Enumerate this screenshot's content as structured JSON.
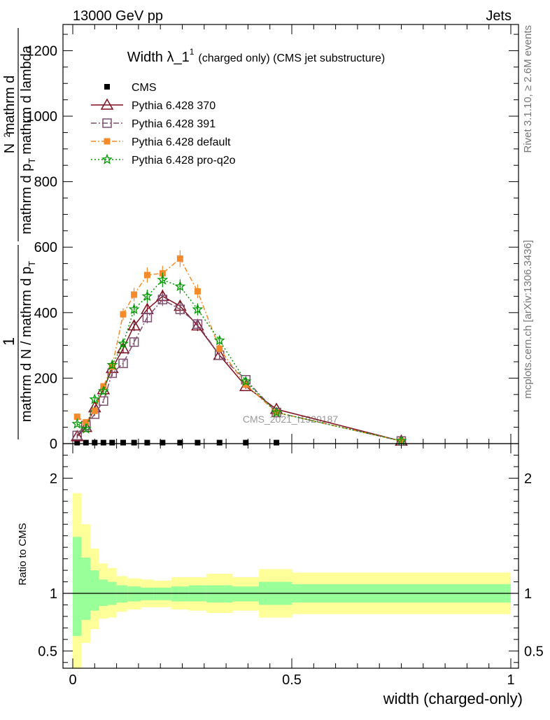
{
  "header": {
    "left": "13000 GeV pp",
    "right": "Jets"
  },
  "side_labels": {
    "rivet": "Rivet 3.1.10, ≥ 2.6M events",
    "mcplots": "mcplots.cern.ch [arXiv:1306.3436]"
  },
  "watermark": "CMS_2021_I1920187",
  "chart_data": [
    {
      "type": "line",
      "title_main": "Width λ_1",
      "title_sup": "1",
      "title_rest": "(charged only) (CMS jet substructure)",
      "ylabel_numer": "1",
      "ylabel_denom_a": "mathrm d N / mathrm d p",
      "ylabel_denom_a_sub": "T",
      "ylabel_denom_b": "mathrm d p",
      "ylabel_denom_b_sub": "T",
      "ylabel_denom_c": "mathrm d lambda",
      "ylabel_numer2": "mathrm d",
      "ylabel_numer2_sup": "2",
      "ylabel_numer3": "N",
      "xlabel": "width (charged-only)",
      "xlim": [
        -0.02,
        1.02
      ],
      "ylim": [
        0,
        1280
      ],
      "yticks": [
        {
          "v": 0,
          "label": "0"
        },
        {
          "v": 200,
          "label": "200"
        },
        {
          "v": 400,
          "label": "400"
        },
        {
          "v": 600,
          "label": "600"
        },
        {
          "v": 800,
          "label": "800"
        },
        {
          "v": 1000,
          "label": "1000"
        },
        {
          "v": 1200,
          "label": "1200"
        }
      ],
      "legend": [
        "CMS",
        "Pythia 6.428 370",
        "Pythia 6.428 391",
        "Pythia 6.428 default",
        "Pythia 6.428 pro-q2o"
      ],
      "series": [
        {
          "name": "CMS",
          "color": "#000000",
          "x": [
            0.01,
            0.03,
            0.05,
            0.07,
            0.09,
            0.115,
            0.14,
            0.17,
            0.205,
            0.245,
            0.285,
            0.335,
            0.395,
            0.465
          ],
          "y": [
            3,
            3,
            3,
            3,
            3,
            3,
            3,
            3,
            3,
            3,
            3,
            3,
            3,
            3
          ]
        },
        {
          "name": "Pythia 6.428 370",
          "color": "#7f0f1f",
          "x": [
            0.01,
            0.03,
            0.05,
            0.07,
            0.09,
            0.115,
            0.14,
            0.17,
            0.205,
            0.245,
            0.285,
            0.335,
            0.395,
            0.465,
            0.75
          ],
          "y": [
            22,
            50,
            110,
            165,
            230,
            290,
            360,
            410,
            450,
            420,
            360,
            270,
            175,
            105,
            8
          ]
        },
        {
          "name": "Pythia 6.428 391",
          "color": "#7f4f6f",
          "x": [
            0.01,
            0.03,
            0.05,
            0.07,
            0.09,
            0.115,
            0.14,
            0.17,
            0.205,
            0.245,
            0.285,
            0.335,
            0.395,
            0.465,
            0.75
          ],
          "y": [
            25,
            55,
            90,
            130,
            215,
            245,
            310,
            385,
            440,
            410,
            365,
            270,
            195,
            95,
            8
          ]
        },
        {
          "name": "Pythia 6.428 default",
          "color": "#f58a2a",
          "x": [
            0.01,
            0.03,
            0.05,
            0.07,
            0.09,
            0.115,
            0.14,
            0.17,
            0.205,
            0.245,
            0.285,
            0.335,
            0.395,
            0.465,
            0.75
          ],
          "y": [
            82,
            65,
            100,
            175,
            235,
            395,
            455,
            515,
            520,
            565,
            465,
            290,
            180,
            95,
            8
          ]
        },
        {
          "name": "Pythia 6.428 pro-q2o",
          "color": "#009a00",
          "x": [
            0.01,
            0.03,
            0.05,
            0.07,
            0.09,
            0.115,
            0.14,
            0.17,
            0.205,
            0.245,
            0.285,
            0.335,
            0.395,
            0.465,
            0.75
          ],
          "y": [
            60,
            45,
            135,
            160,
            240,
            305,
            410,
            450,
            500,
            480,
            410,
            315,
            190,
            95,
            8
          ]
        }
      ]
    },
    {
      "type": "area",
      "ylabel": "Ratio to CMS",
      "ylim": [
        0.35,
        2.3
      ],
      "yticks": [
        {
          "v": 0.5,
          "label": "0.5"
        },
        {
          "v": 1,
          "label": "1"
        },
        {
          "v": 2,
          "label": "2"
        }
      ],
      "xticks": [
        {
          "v": 0,
          "label": "0"
        },
        {
          "v": 0.5,
          "label": "0.5"
        },
        {
          "v": 1,
          "label": "1"
        }
      ],
      "colors": {
        "outer": "#ffff99",
        "inner": "#99ff99",
        "line": "#000000"
      },
      "bins": [
        {
          "x0": 0.0,
          "x1": 0.02,
          "in_lo": 0.63,
          "in_hi": 1.49,
          "out_lo": 0.2,
          "out_hi": 1.87
        },
        {
          "x0": 0.02,
          "x1": 0.04,
          "in_lo": 0.77,
          "in_hi": 1.31,
          "out_lo": 0.57,
          "out_hi": 1.6
        },
        {
          "x0": 0.04,
          "x1": 0.06,
          "in_lo": 0.85,
          "in_hi": 1.2,
          "out_lo": 0.69,
          "out_hi": 1.39
        },
        {
          "x0": 0.06,
          "x1": 0.08,
          "in_lo": 0.89,
          "in_hi": 1.12,
          "out_lo": 0.78,
          "out_hi": 1.26
        },
        {
          "x0": 0.08,
          "x1": 0.1,
          "in_lo": 0.9,
          "in_hi": 1.1,
          "out_lo": 0.79,
          "out_hi": 1.22
        },
        {
          "x0": 0.1,
          "x1": 0.125,
          "in_lo": 0.92,
          "in_hi": 1.07,
          "out_lo": 0.84,
          "out_hi": 1.15
        },
        {
          "x0": 0.125,
          "x1": 0.155,
          "in_lo": 0.93,
          "in_hi": 1.06,
          "out_lo": 0.86,
          "out_hi": 1.13
        },
        {
          "x0": 0.155,
          "x1": 0.185,
          "in_lo": 0.94,
          "in_hi": 1.05,
          "out_lo": 0.88,
          "out_hi": 1.12
        },
        {
          "x0": 0.185,
          "x1": 0.225,
          "in_lo": 0.94,
          "in_hi": 1.05,
          "out_lo": 0.88,
          "out_hi": 1.11
        },
        {
          "x0": 0.225,
          "x1": 0.265,
          "in_lo": 0.93,
          "in_hi": 1.06,
          "out_lo": 0.86,
          "out_hi": 1.14
        },
        {
          "x0": 0.265,
          "x1": 0.305,
          "in_lo": 0.93,
          "in_hi": 1.07,
          "out_lo": 0.85,
          "out_hi": 1.14
        },
        {
          "x0": 0.305,
          "x1": 0.365,
          "in_lo": 0.92,
          "in_hi": 1.07,
          "out_lo": 0.83,
          "out_hi": 1.17
        },
        {
          "x0": 0.365,
          "x1": 0.425,
          "in_lo": 0.93,
          "in_hi": 1.06,
          "out_lo": 0.85,
          "out_hi": 1.14
        },
        {
          "x0": 0.425,
          "x1": 0.5,
          "in_lo": 0.9,
          "in_hi": 1.1,
          "out_lo": 0.79,
          "out_hi": 1.21
        },
        {
          "x0": 0.5,
          "x1": 1.0,
          "in_lo": 0.92,
          "in_hi": 1.08,
          "out_lo": 0.82,
          "out_hi": 1.18
        }
      ]
    }
  ]
}
